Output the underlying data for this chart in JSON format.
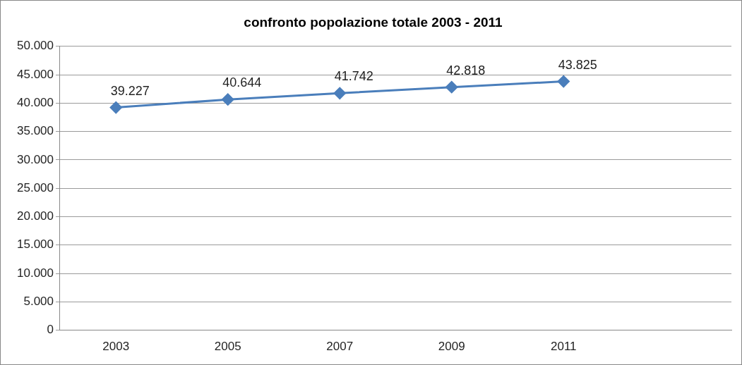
{
  "chart_data": {
    "type": "line",
    "title": "confronto popolazione totale 2003 - 2011",
    "categories": [
      "2003",
      "2005",
      "2007",
      "2009",
      "2011",
      null
    ],
    "series": [
      {
        "color": "#4a7ebb",
        "values": [
          39227,
          40644,
          41742,
          42818,
          43825,
          null
        ],
        "value_labels": [
          "39.227",
          "40.644",
          "41.742",
          "42.818",
          "43.825",
          null
        ]
      }
    ],
    "ylim": [
      0,
      50000
    ],
    "yticks": [
      {
        "value": 0,
        "label": "0"
      },
      {
        "value": 5000,
        "label": "5.000"
      },
      {
        "value": 10000,
        "label": "10.000"
      },
      {
        "value": 15000,
        "label": "15.000"
      },
      {
        "value": 20000,
        "label": "20.000"
      },
      {
        "value": 25000,
        "label": "25.000"
      },
      {
        "value": 30000,
        "label": "30.000"
      },
      {
        "value": 35000,
        "label": "35.000"
      },
      {
        "value": 40000,
        "label": "40.000"
      },
      {
        "value": 45000,
        "label": "45.000"
      },
      {
        "value": 50000,
        "label": "50.000"
      }
    ],
    "grid": "y",
    "legend": false,
    "marker": "diamond",
    "line_style": "solid"
  }
}
